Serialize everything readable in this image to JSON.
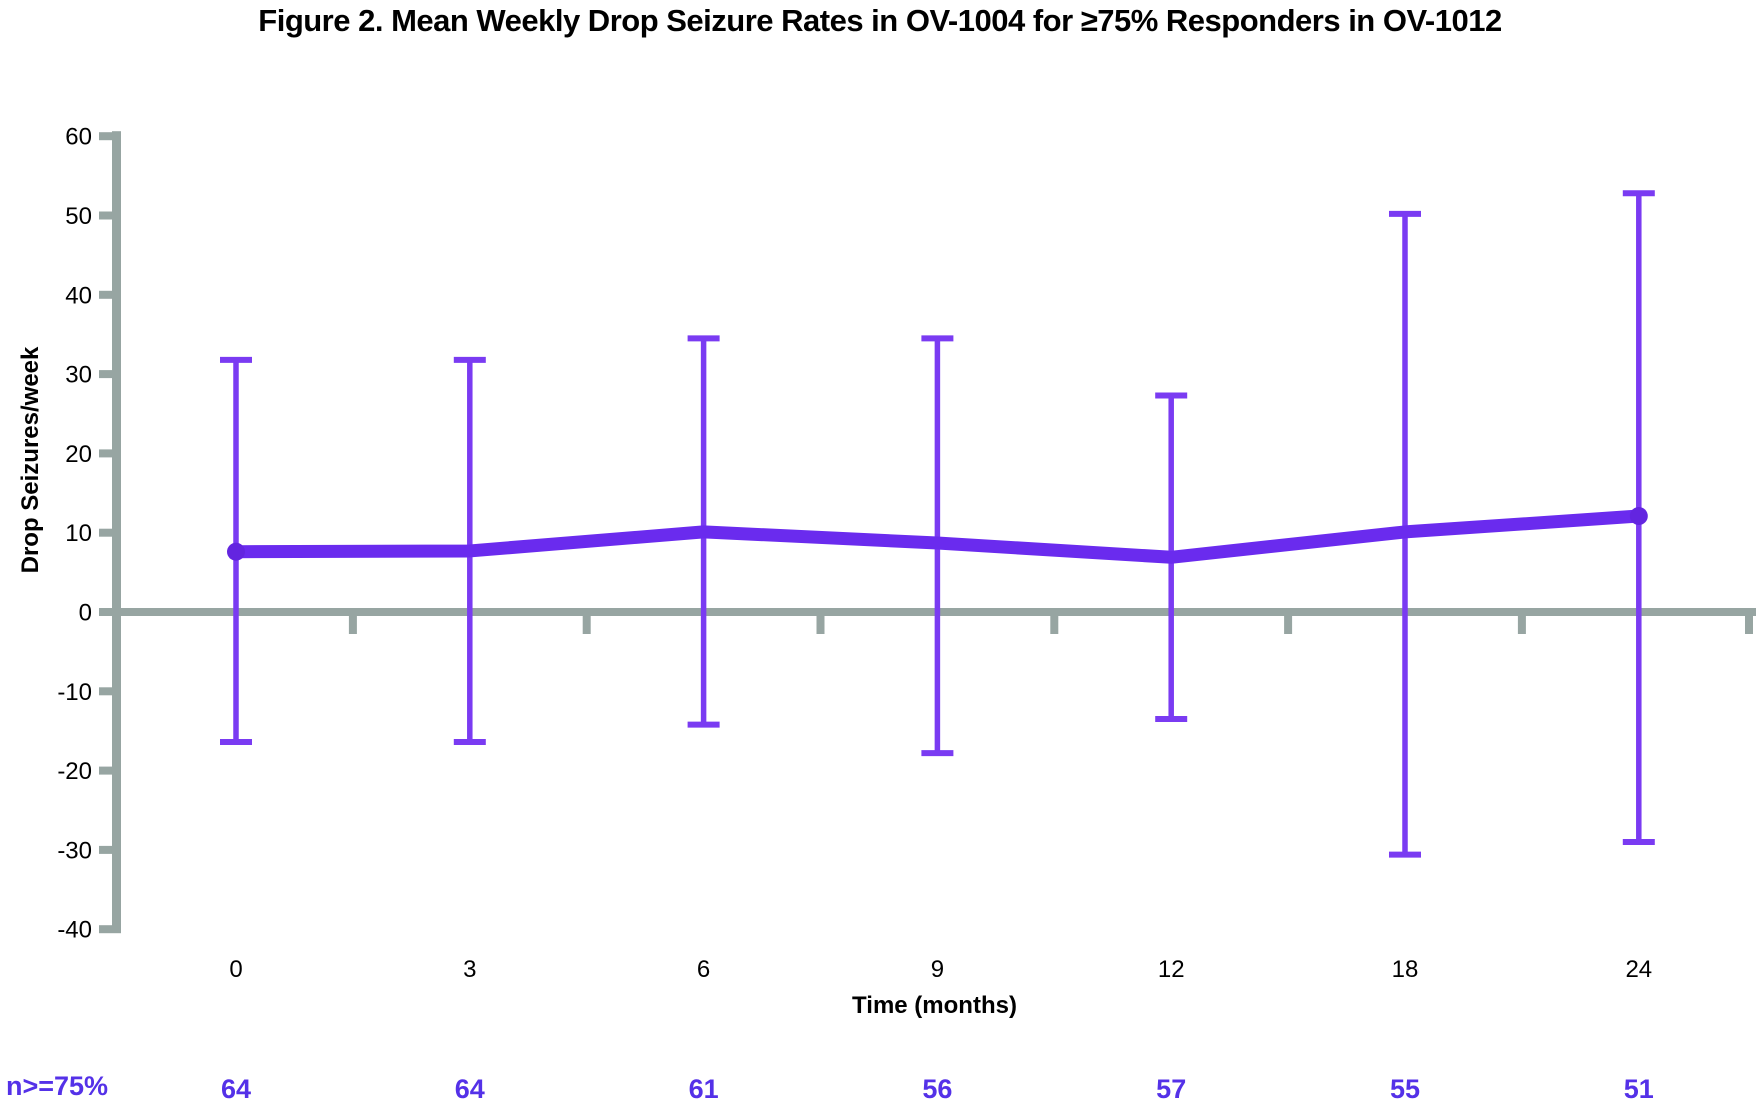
{
  "chart_data": {
    "type": "line",
    "title": "Figure 2. Mean Weekly Drop Seizure Rates in OV-1004 for ≥75% Responders in OV-1012",
    "xlabel": "Time (months)",
    "ylabel": "Drop Seizures/week",
    "categories": [
      "0",
      "3",
      "6",
      "9",
      "12",
      "18",
      "24"
    ],
    "series": [
      {
        "name": "Mean weekly drop seizure rate",
        "values": [
          7.6,
          7.7,
          10.1,
          8.7,
          6.9,
          10.1,
          12.1
        ],
        "error_upper": [
          31.8,
          31.8,
          34.5,
          34.5,
          27.3,
          50.2,
          52.8
        ],
        "error_lower": [
          -16.4,
          -16.4,
          -14.2,
          -17.8,
          -13.5,
          -30.6,
          -29.0
        ]
      }
    ],
    "ylim": [
      -40,
      60
    ],
    "yticks": [
      60,
      50,
      40,
      30,
      20,
      10,
      0,
      -10,
      -20,
      -30,
      -40
    ],
    "grid": false,
    "legend": false
  },
  "footer": {
    "label": "n>=75%",
    "values": [
      "64",
      "64",
      "61",
      "56",
      "57",
      "55",
      "51"
    ]
  },
  "colors": {
    "line": "#6A2BEE",
    "marker": "#6325E0",
    "error_bar": "#7A3BF2",
    "axis": "#97A5A2",
    "tick_text": "#000000",
    "n_text": "#5431E8"
  }
}
